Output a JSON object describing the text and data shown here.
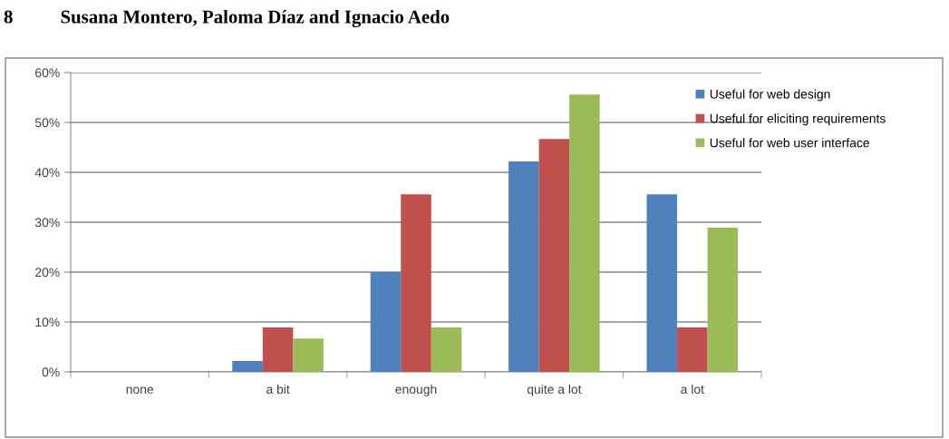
{
  "chart_data": {
    "type": "bar",
    "categories": [
      "none",
      "a bit",
      "enough",
      "quite a lot",
      "a lot"
    ],
    "series": [
      {
        "name": "Useful for web design",
        "color": "#4f81bd",
        "values": [
          0,
          2.2,
          20,
          42.2,
          35.6
        ]
      },
      {
        "name": "Useful for eliciting requirements",
        "color": "#c0504d",
        "values": [
          0,
          8.9,
          35.6,
          46.7,
          8.9
        ]
      },
      {
        "name": "Useful for web user interface",
        "color": "#9bbb59",
        "values": [
          0,
          6.7,
          8.9,
          55.6,
          28.9
        ]
      }
    ],
    "ylim": [
      0,
      60
    ],
    "yticks": [
      {
        "value": 0,
        "label": "0%"
      },
      {
        "value": 10,
        "label": "10%"
      },
      {
        "value": 20,
        "label": "20%"
      },
      {
        "value": 30,
        "label": "30%"
      },
      {
        "value": 40,
        "label": "40%"
      },
      {
        "value": 50,
        "label": "50%"
      },
      {
        "value": 60,
        "label": "60%"
      }
    ],
    "grid": "y",
    "legend": "right",
    "annotations": [
      "8          Susana Montero, Paloma Díaz and Ignacio Aedo"
    ]
  }
}
